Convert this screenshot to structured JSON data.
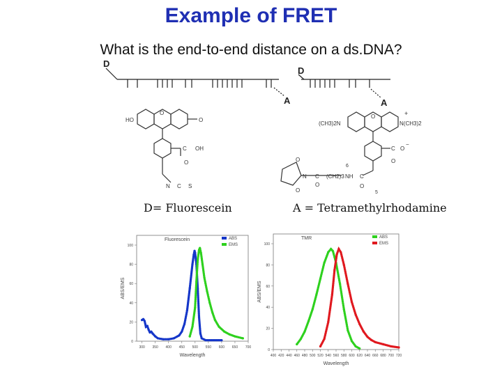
{
  "slide": {
    "title": "Example of FRET",
    "subtitle": "What is the end-to-end distance on a ds.DNA?",
    "caption_donor": "D= Fluorescein",
    "caption_acceptor": "A = Tetramethylrhodamine"
  },
  "dna_diagram": {
    "label_d_left": "D",
    "label_d_right": "D",
    "label_a_left": "A",
    "label_a_right": "A"
  },
  "structures": {
    "fluorescein": {
      "ho": "HO",
      "o_ring": "O",
      "keto": "O",
      "c": "C",
      "oh": "OH",
      "c_o": "O",
      "n": "N",
      "c2": "C",
      "s": "S"
    },
    "tmr": {
      "nme2_left": "(CH3)2N",
      "o_ring": "O",
      "nme2_right": "N(CH3)2",
      "plus": "+",
      "c": "C",
      "o_minus": "O",
      "minus": "−",
      "s5": "5",
      "s6": "6",
      "o1": "O",
      "o2": "O",
      "n_mal": "N",
      "c_link": "C",
      "ch2": "(CH2)3",
      "nh": "NH",
      "c3": "C",
      "o3": "O",
      "o4": "O",
      "o5": "O"
    }
  },
  "chart_data": [
    {
      "type": "line",
      "title": "Fluorescein",
      "xlabel": "Wavelength",
      "ylabel": "ABS/EMS",
      "xlim": [
        280,
        700
      ],
      "ylim": [
        0,
        100
      ],
      "x_ticks": [
        300,
        350,
        400,
        450,
        500,
        550,
        600,
        650,
        700
      ],
      "y_ticks": [
        0,
        20,
        40,
        60,
        80,
        100
      ],
      "series": [
        {
          "name": "ABS",
          "color": "#1536c9",
          "points": [
            [
              300,
              22
            ],
            [
              305,
              23
            ],
            [
              310,
              21
            ],
            [
              315,
              15
            ],
            [
              320,
              16
            ],
            [
              325,
              12
            ],
            [
              330,
              9
            ],
            [
              335,
              10
            ],
            [
              340,
              8
            ],
            [
              350,
              5
            ],
            [
              360,
              3
            ],
            [
              380,
              2
            ],
            [
              400,
              2
            ],
            [
              420,
              3
            ],
            [
              440,
              6
            ],
            [
              450,
              10
            ],
            [
              460,
              18
            ],
            [
              470,
              32
            ],
            [
              480,
              55
            ],
            [
              490,
              80
            ],
            [
              495,
              90
            ],
            [
              498,
              94
            ],
            [
              500,
              92
            ],
            [
              505,
              80
            ],
            [
              510,
              55
            ],
            [
              515,
              25
            ],
            [
              520,
              8
            ],
            [
              525,
              3
            ],
            [
              540,
              1
            ],
            [
              600,
              1
            ]
          ]
        },
        {
          "name": "EMS",
          "color": "#2ed11e",
          "points": [
            [
              480,
              5
            ],
            [
              490,
              15
            ],
            [
              500,
              35
            ],
            [
              505,
              62
            ],
            [
              510,
              85
            ],
            [
              515,
              95
            ],
            [
              518,
              97
            ],
            [
              522,
              92
            ],
            [
              528,
              80
            ],
            [
              535,
              66
            ],
            [
              545,
              52
            ],
            [
              555,
              40
            ],
            [
              565,
              30
            ],
            [
              575,
              22
            ],
            [
              590,
              15
            ],
            [
              610,
              10
            ],
            [
              630,
              7
            ],
            [
              650,
              5
            ],
            [
              680,
              3
            ]
          ]
        }
      ]
    },
    {
      "type": "line",
      "title": "TMR",
      "xlabel": "Wavelength",
      "ylabel": "ABS/EMS",
      "xlim": [
        400,
        720
      ],
      "ylim": [
        0,
        100
      ],
      "x_ticks": [
        400,
        420,
        440,
        460,
        480,
        500,
        520,
        540,
        560,
        580,
        600,
        620,
        640,
        660,
        680,
        700,
        720
      ],
      "y_ticks": [
        0,
        20,
        40,
        60,
        80,
        100
      ],
      "series": [
        {
          "name": "ABS",
          "color": "#2ed11e",
          "points": [
            [
              460,
              5
            ],
            [
              470,
              10
            ],
            [
              480,
              17
            ],
            [
              490,
              27
            ],
            [
              500,
              38
            ],
            [
              510,
              52
            ],
            [
              520,
              67
            ],
            [
              530,
              82
            ],
            [
              540,
              92
            ],
            [
              547,
              95
            ],
            [
              552,
              93
            ],
            [
              560,
              82
            ],
            [
              570,
              62
            ],
            [
              580,
              38
            ],
            [
              590,
              18
            ],
            [
              600,
              8
            ],
            [
              610,
              3
            ],
            [
              620,
              1
            ]
          ]
        },
        {
          "name": "EMS",
          "color": "#e0191f",
          "points": [
            [
              520,
              3
            ],
            [
              530,
              10
            ],
            [
              540,
              26
            ],
            [
              550,
              52
            ],
            [
              556,
              75
            ],
            [
              562,
              90
            ],
            [
              567,
              95
            ],
            [
              572,
              92
            ],
            [
              580,
              80
            ],
            [
              590,
              62
            ],
            [
              600,
              45
            ],
            [
              610,
              33
            ],
            [
              620,
              24
            ],
            [
              630,
              17
            ],
            [
              640,
              12
            ],
            [
              650,
              9
            ],
            [
              660,
              7
            ],
            [
              680,
              5
            ],
            [
              700,
              3
            ],
            [
              720,
              2
            ]
          ]
        }
      ]
    }
  ]
}
